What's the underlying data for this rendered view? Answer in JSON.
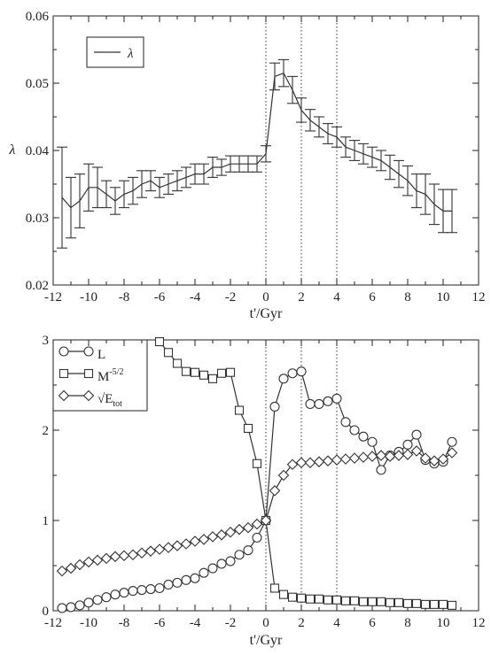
{
  "chart_data": [
    {
      "type": "line",
      "xlabel": "t'/Gyr",
      "ylabel": "λ",
      "xlim": [
        -12,
        12
      ],
      "ylim": [
        0.02,
        0.06
      ],
      "xticks": [
        -12,
        -10,
        -8,
        -6,
        -4,
        -2,
        0,
        2,
        4,
        6,
        8,
        10,
        12
      ],
      "yticks": [
        0.02,
        0.03,
        0.04,
        0.05,
        0.06
      ],
      "xtick_labels": [
        "-12",
        "-10",
        "-8",
        "-6",
        "-4",
        "-2",
        "0",
        "2",
        "4",
        "6",
        "8",
        "10",
        "12"
      ],
      "ytick_labels": [
        "0.02",
        "0.03",
        "0.04",
        "0.05",
        "0.06"
      ],
      "vlines": [
        0,
        2,
        4
      ],
      "legend": {
        "position": "top-left",
        "entries": [
          "λ"
        ]
      },
      "series": [
        {
          "name": "λ",
          "x": [
            -11.5,
            -11,
            -10.5,
            -10,
            -9.5,
            -9,
            -8.5,
            -8,
            -7.5,
            -7,
            -6.5,
            -6,
            -5.5,
            -5,
            -4.5,
            -4,
            -3.5,
            -3,
            -2.5,
            -2,
            -1.5,
            -1,
            -0.5,
            0,
            0.5,
            1,
            1.5,
            2,
            2.5,
            3,
            3.5,
            4,
            4.5,
            5,
            5.5,
            6,
            6.5,
            7,
            7.5,
            8,
            8.5,
            9,
            9.5,
            10,
            10.5
          ],
          "y": [
            0.033,
            0.0315,
            0.0325,
            0.0345,
            0.0345,
            0.0335,
            0.0325,
            0.0335,
            0.034,
            0.035,
            0.0355,
            0.0345,
            0.035,
            0.0355,
            0.036,
            0.0365,
            0.0365,
            0.0375,
            0.0375,
            0.038,
            0.038,
            0.038,
            0.038,
            0.0395,
            0.051,
            0.0515,
            0.049,
            0.046,
            0.0445,
            0.0435,
            0.0425,
            0.042,
            0.0405,
            0.04,
            0.0395,
            0.039,
            0.0385,
            0.0375,
            0.0365,
            0.0355,
            0.034,
            0.0335,
            0.032,
            0.031,
            0.031
          ],
          "err": [
            0.0075,
            0.0045,
            0.004,
            0.0035,
            0.003,
            0.002,
            0.002,
            0.002,
            0.002,
            0.002,
            0.0015,
            0.0015,
            0.0015,
            0.0015,
            0.0015,
            0.0015,
            0.0015,
            0.0015,
            0.0012,
            0.0012,
            0.0012,
            0.0012,
            0.0012,
            0.0012,
            0.002,
            0.002,
            0.002,
            0.0018,
            0.0016,
            0.0015,
            0.0015,
            0.0015,
            0.0015,
            0.0015,
            0.0015,
            0.0015,
            0.0015,
            0.0018,
            0.002,
            0.0022,
            0.0025,
            0.003,
            0.003,
            0.0032,
            0.0032
          ]
        }
      ]
    },
    {
      "type": "line",
      "xlabel": "t'/Gyr",
      "ylabel": "",
      "xlim": [
        -12,
        12
      ],
      "ylim": [
        0,
        3
      ],
      "xticks": [
        -12,
        -10,
        -8,
        -6,
        -4,
        -2,
        0,
        2,
        4,
        6,
        8,
        10,
        12
      ],
      "yticks": [
        0,
        1,
        2,
        3
      ],
      "xtick_labels": [
        "-12",
        "-10",
        "-8",
        "-6",
        "-4",
        "-2",
        "0",
        "2",
        "4",
        "6",
        "8",
        "10",
        "12"
      ],
      "ytick_labels": [
        "0",
        "1",
        "2",
        "3"
      ],
      "vlines": [
        0,
        2,
        4
      ],
      "legend": {
        "position": "top-left",
        "entries": [
          "L",
          "M",
          "√E"
        ]
      },
      "series": [
        {
          "name": "L",
          "marker": "circle",
          "x": [
            -11.5,
            -11,
            -10.5,
            -10,
            -9.5,
            -9,
            -8.5,
            -8,
            -7.5,
            -7,
            -6.5,
            -6,
            -5.5,
            -5,
            -4.5,
            -4,
            -3.5,
            -3,
            -2.5,
            -2,
            -1.5,
            -1,
            -0.5,
            0,
            0.5,
            1,
            1.5,
            2,
            2.5,
            3,
            3.5,
            4,
            4.5,
            5,
            5.5,
            6,
            6.5,
            7,
            7.5,
            8,
            8.5,
            9,
            9.5,
            10,
            10.5
          ],
          "y": [
            0.03,
            0.04,
            0.06,
            0.09,
            0.12,
            0.15,
            0.18,
            0.2,
            0.22,
            0.23,
            0.24,
            0.25,
            0.29,
            0.31,
            0.34,
            0.36,
            0.42,
            0.47,
            0.52,
            0.55,
            0.62,
            0.67,
            0.81,
            1.0,
            2.26,
            2.57,
            2.63,
            2.65,
            2.29,
            2.29,
            2.32,
            2.35,
            2.09,
            2.0,
            1.93,
            1.87,
            1.56,
            1.72,
            1.76,
            1.84,
            1.95,
            1.67,
            1.63,
            1.65,
            1.87
          ]
        },
        {
          "name": "M",
          "marker": "square",
          "x": [
            -6,
            -5.5,
            -5,
            -4.5,
            -4,
            -3.5,
            -3,
            -2.5,
            -2,
            -1.5,
            -1,
            -0.5,
            0,
            0.5,
            1,
            1.5,
            2,
            2.5,
            3,
            3.5,
            4,
            4.5,
            5,
            5.5,
            6,
            6.5,
            7,
            7.5,
            8,
            8.5,
            9,
            9.5,
            10,
            10.5
          ],
          "y": [
            2.98,
            2.86,
            2.74,
            2.65,
            2.64,
            2.61,
            2.57,
            2.63,
            2.64,
            2.22,
            2.02,
            1.63,
            1.0,
            0.25,
            0.18,
            0.15,
            0.14,
            0.13,
            0.13,
            0.12,
            0.12,
            0.11,
            0.11,
            0.1,
            0.1,
            0.1,
            0.09,
            0.09,
            0.08,
            0.08,
            0.07,
            0.07,
            0.07,
            0.06
          ]
        },
        {
          "name": "√E",
          "marker": "diamond",
          "x": [
            -11.5,
            -11,
            -10.5,
            -10,
            -9.5,
            -9,
            -8.5,
            -8,
            -7.5,
            -7,
            -6.5,
            -6,
            -5.5,
            -5,
            -4.5,
            -4,
            -3.5,
            -3,
            -2.5,
            -2,
            -1.5,
            -1,
            -0.5,
            0,
            0.5,
            1,
            1.5,
            2,
            2.5,
            3,
            3.5,
            4,
            4.5,
            5,
            5.5,
            6,
            6.5,
            7,
            7.5,
            8,
            8.5,
            9,
            9.5,
            10,
            10.5
          ],
          "y": [
            0.44,
            0.47,
            0.51,
            0.54,
            0.56,
            0.58,
            0.6,
            0.61,
            0.62,
            0.64,
            0.66,
            0.68,
            0.7,
            0.72,
            0.74,
            0.77,
            0.79,
            0.82,
            0.84,
            0.87,
            0.9,
            0.92,
            0.96,
            1.0,
            1.33,
            1.5,
            1.62,
            1.64,
            1.64,
            1.65,
            1.66,
            1.67,
            1.68,
            1.69,
            1.7,
            1.71,
            1.72,
            1.71,
            1.72,
            1.73,
            1.77,
            1.69,
            1.66,
            1.68,
            1.75
          ]
        }
      ]
    }
  ]
}
